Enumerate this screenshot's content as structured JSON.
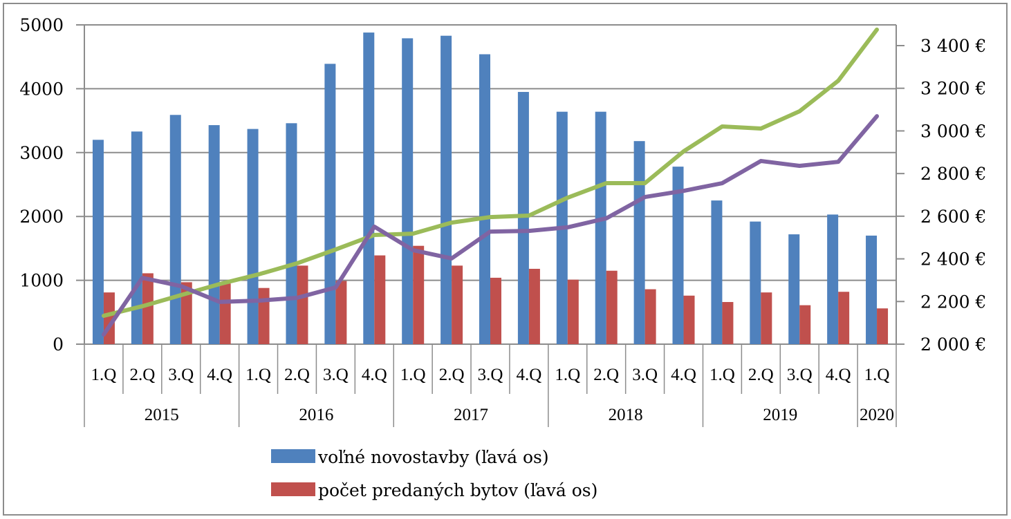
{
  "chart_data": {
    "type": "bar",
    "title": "",
    "xlabel": "",
    "ylabel": "",
    "categories": [
      "1.Q",
      "2.Q",
      "3.Q",
      "4.Q",
      "1.Q",
      "2.Q",
      "3.Q",
      "4.Q",
      "1.Q",
      "2.Q",
      "3.Q",
      "4.Q",
      "1.Q",
      "2.Q",
      "3.Q",
      "4.Q",
      "1.Q",
      "2.Q",
      "3.Q",
      "4.Q",
      "1.Q"
    ],
    "year_groups": [
      {
        "label": "2015",
        "count": 4
      },
      {
        "label": "2016",
        "count": 4
      },
      {
        "label": "2017",
        "count": 4
      },
      {
        "label": "2018",
        "count": 4
      },
      {
        "label": "2019",
        "count": 4
      },
      {
        "label": "2020",
        "count": 1
      }
    ],
    "ylim": [
      0,
      5000
    ],
    "yticks": [
      "0",
      "1000",
      "2000",
      "3000",
      "4000",
      "5000"
    ],
    "y2lim": [
      2000,
      3500
    ],
    "y2ticks": [
      "2 000 €",
      "2 200 €",
      "2 400 €",
      "2 600 €",
      "2 800 €",
      "3 000 €",
      "3 200 €",
      "3 400 €"
    ],
    "grid": true,
    "legend_position": "bottom",
    "series": [
      {
        "name": "voľné novostavby (ľavá os)",
        "type": "bar",
        "axis": "left",
        "color": "#4F81BD",
        "values": [
          3200,
          3330,
          3590,
          3430,
          3370,
          3460,
          4390,
          4880,
          4790,
          4830,
          4540,
          3950,
          3640,
          3640,
          3180,
          2780,
          2250,
          1920,
          1720,
          2030,
          1700
        ]
      },
      {
        "name": "počet predaných bytov (ľavá os)",
        "type": "bar",
        "axis": "left",
        "color": "#C0504D",
        "values": [
          810,
          1110,
          970,
          950,
          880,
          1230,
          990,
          1390,
          1540,
          1230,
          1040,
          1180,
          1010,
          1150,
          860,
          760,
          660,
          810,
          610,
          820,
          560
        ]
      },
      {
        "name": "",
        "type": "line",
        "axis": "right",
        "color": "#9BBB59",
        "values": [
          2133,
          2178,
          2230,
          2282,
          2327,
          2379,
          2444,
          2512,
          2518,
          2570,
          2596,
          2603,
          2687,
          2755,
          2755,
          2904,
          3021,
          3011,
          3092,
          3235,
          3475
        ]
      },
      {
        "name": "",
        "type": "line",
        "axis": "right",
        "color": "#8064A2",
        "values": [
          2045,
          2311,
          2272,
          2198,
          2204,
          2217,
          2266,
          2551,
          2441,
          2402,
          2528,
          2531,
          2548,
          2590,
          2690,
          2719,
          2755,
          2859,
          2836,
          2855,
          3069
        ]
      }
    ],
    "legend": [
      {
        "label": "voľné novostavby (ľavá os)",
        "color": "#4F81BD"
      },
      {
        "label": "počet predaných bytov (ľavá os)",
        "color": "#C0504D"
      }
    ]
  }
}
